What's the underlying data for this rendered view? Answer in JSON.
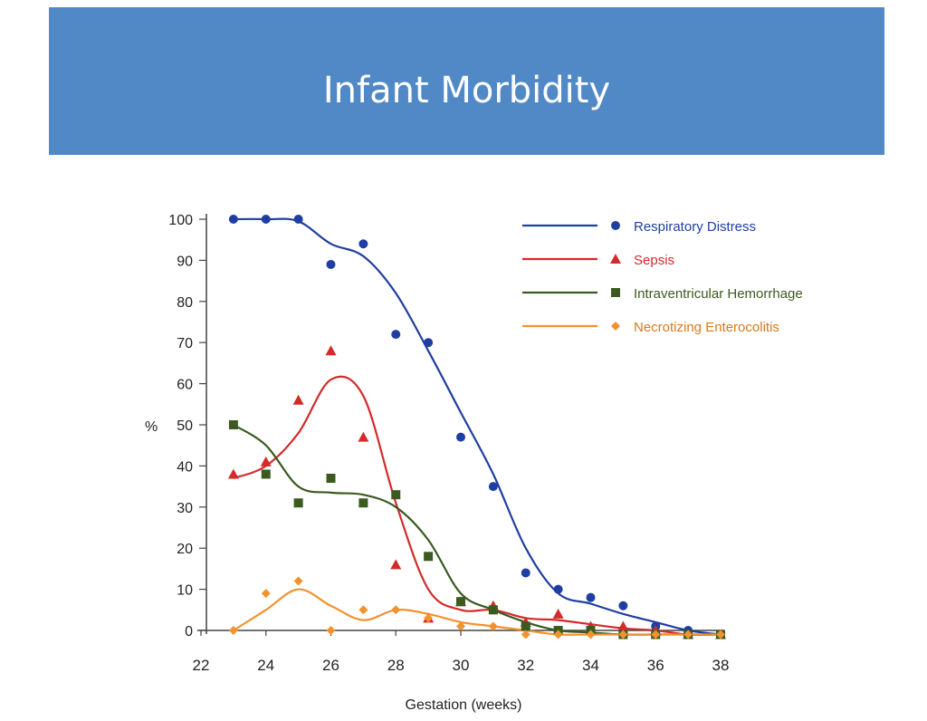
{
  "slide": {
    "title": "Infant Morbidity"
  },
  "chart_data": {
    "type": "line",
    "xlabel": "Gestation (weeks)",
    "ylabel": "%",
    "xlim": [
      22,
      38
    ],
    "ylim": [
      0,
      100
    ],
    "x_ticks": [
      "22",
      "24",
      "26",
      "28",
      "30",
      "32",
      "34",
      "36",
      "38"
    ],
    "y_ticks": [
      "0",
      "10",
      "20",
      "30",
      "40",
      "50",
      "60",
      "70",
      "80",
      "90",
      "100"
    ],
    "legend_position": "top-right",
    "series": [
      {
        "name": "Respiratory Distress",
        "color": "#1f3fa0",
        "marker": "circle",
        "points": [
          [
            23,
            100
          ],
          [
            24,
            100
          ],
          [
            25,
            100
          ],
          [
            26,
            89
          ],
          [
            27,
            94
          ],
          [
            28,
            72
          ],
          [
            29,
            70
          ],
          [
            30,
            47
          ],
          [
            31,
            35
          ],
          [
            32,
            14
          ],
          [
            33,
            10
          ],
          [
            34,
            8
          ],
          [
            35,
            6
          ],
          [
            36,
            1
          ],
          [
            37,
            0
          ],
          [
            38,
            -1
          ]
        ],
        "curve": [
          [
            23,
            100
          ],
          [
            24,
            100
          ],
          [
            25,
            99.5
          ],
          [
            26,
            94
          ],
          [
            27,
            91
          ],
          [
            28,
            82
          ],
          [
            29,
            68
          ],
          [
            30,
            53
          ],
          [
            31,
            38
          ],
          [
            32,
            20
          ],
          [
            33,
            9
          ],
          [
            34,
            6.5
          ],
          [
            35,
            4
          ],
          [
            36,
            2
          ],
          [
            37,
            0
          ],
          [
            38,
            -1
          ]
        ]
      },
      {
        "name": "Sepsis",
        "color": "#d42a2a",
        "marker": "triangle",
        "points": [
          [
            23,
            38
          ],
          [
            24,
            41
          ],
          [
            25,
            56
          ],
          [
            26,
            68
          ],
          [
            27,
            47
          ],
          [
            28,
            16
          ],
          [
            29,
            3
          ],
          [
            30,
            7
          ],
          [
            31,
            6
          ],
          [
            32,
            2
          ],
          [
            33,
            4
          ],
          [
            34,
            1
          ],
          [
            35,
            1
          ],
          [
            36,
            0
          ],
          [
            37,
            -1
          ],
          [
            38,
            -1
          ]
        ],
        "curve": [
          [
            23,
            37
          ],
          [
            24,
            40
          ],
          [
            25,
            48
          ],
          [
            26,
            61
          ],
          [
            27,
            57
          ],
          [
            28,
            31
          ],
          [
            29,
            10
          ],
          [
            30,
            5
          ],
          [
            31,
            5
          ],
          [
            32,
            3
          ],
          [
            33,
            2.5
          ],
          [
            34,
            1.5
          ],
          [
            35,
            0.5
          ],
          [
            36,
            0
          ],
          [
            37,
            -1
          ],
          [
            38,
            -1
          ]
        ]
      },
      {
        "name": "Intraventricular Hemorrhage",
        "color": "#3a5a20",
        "marker": "square",
        "points": [
          [
            23,
            50
          ],
          [
            24,
            38
          ],
          [
            25,
            31
          ],
          [
            26,
            37
          ],
          [
            27,
            31
          ],
          [
            28,
            33
          ],
          [
            29,
            18
          ],
          [
            30,
            7
          ],
          [
            31,
            5
          ],
          [
            32,
            1
          ],
          [
            33,
            0
          ],
          [
            34,
            0
          ],
          [
            35,
            -1
          ],
          [
            36,
            -1
          ],
          [
            37,
            -1
          ],
          [
            38,
            -1
          ]
        ],
        "curve": [
          [
            23,
            50
          ],
          [
            24,
            45
          ],
          [
            25,
            35
          ],
          [
            26,
            33.5
          ],
          [
            27,
            33
          ],
          [
            28,
            30
          ],
          [
            29,
            22
          ],
          [
            30,
            9
          ],
          [
            31,
            5
          ],
          [
            32,
            2
          ],
          [
            33,
            0
          ],
          [
            34,
            -0.5
          ],
          [
            35,
            -1
          ],
          [
            36,
            -1
          ],
          [
            37,
            -1
          ],
          [
            38,
            -1
          ]
        ]
      },
      {
        "name": "Necrotizing Enterocolitis",
        "color": "#f2922e",
        "marker": "diamond",
        "points": [
          [
            23,
            0
          ],
          [
            24,
            9
          ],
          [
            25,
            12
          ],
          [
            26,
            0
          ],
          [
            27,
            5
          ],
          [
            28,
            5
          ],
          [
            29,
            3
          ],
          [
            30,
            1
          ],
          [
            31,
            1
          ],
          [
            32,
            -1
          ],
          [
            33,
            -1
          ],
          [
            34,
            -1
          ],
          [
            35,
            -1
          ],
          [
            36,
            -1
          ],
          [
            37,
            -1
          ],
          [
            38,
            -1
          ]
        ],
        "curve": [
          [
            23,
            0
          ],
          [
            24,
            5
          ],
          [
            25,
            10
          ],
          [
            26,
            6
          ],
          [
            27,
            2.5
          ],
          [
            28,
            5
          ],
          [
            29,
            4
          ],
          [
            30,
            2
          ],
          [
            31,
            1
          ],
          [
            32,
            0
          ],
          [
            33,
            -1
          ],
          [
            34,
            -1
          ],
          [
            35,
            -1
          ],
          [
            36,
            -1
          ],
          [
            37,
            -1
          ],
          [
            38,
            -1
          ]
        ]
      }
    ]
  }
}
